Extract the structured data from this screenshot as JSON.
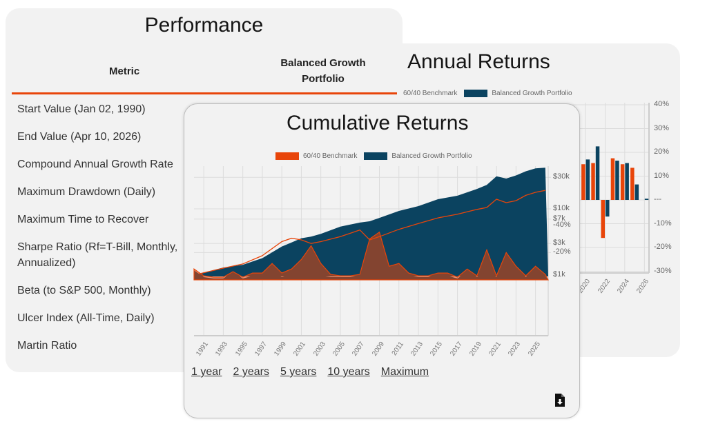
{
  "performance": {
    "title": "Performance",
    "columns": [
      "Metric",
      "Balanced Growth Portfolio"
    ],
    "rows": [
      "Start Value (Jan 02, 1990)",
      "End Value (Apr 10, 2026)",
      "Compound Annual Growth Rate",
      "Maximum Drawdown (Daily)",
      "Maximum Time to Recover",
      "Sharpe Ratio (Rf=T-Bill, Monthly, Annualized)",
      "Beta (to S&P 500, Monthly)",
      "Ulcer Index (All-Time, Daily)",
      "Martin Ratio"
    ],
    "accent": "#e8450a"
  },
  "annual": {
    "title": "Annual Returns",
    "legend": [
      "60/40 Benchmark",
      "Balanced Growth Portfolio"
    ],
    "y_ticks": [
      "40%",
      "30%",
      "20%",
      "10%",
      "---",
      "-10%",
      "-20%",
      "-30%"
    ],
    "x_ticks": [
      "2020",
      "2022",
      "2024",
      "2026"
    ]
  },
  "cumulative": {
    "title": "Cumulative Returns",
    "legend": [
      "60/40 Benchmark",
      "Balanced Growth Portfolio"
    ],
    "y_ticks": [
      "$30k",
      "$10k",
      "$7k",
      "$3k",
      "$1k"
    ],
    "dd_ticks": [
      "-20%",
      "-40%"
    ],
    "x_ticks": [
      "1991",
      "1993",
      "1995",
      "1997",
      "1999",
      "2001",
      "2003",
      "2005",
      "2007",
      "2009",
      "2011",
      "2013",
      "2015",
      "2017",
      "2019",
      "2021",
      "2023",
      "2025"
    ],
    "links": [
      "1 year",
      "2 years",
      "5 years",
      "10 years",
      "Maximum"
    ],
    "download_icon": "file-download-icon"
  },
  "colors": {
    "benchmark": "#e8450a",
    "portfolio": "#0b4360"
  },
  "chart_data": [
    {
      "type": "area",
      "title": "Cumulative Returns",
      "yscale": "log",
      "ylim": [
        1000,
        42000
      ],
      "x": [
        1990,
        1993,
        1995,
        1997,
        1999,
        2000,
        2001,
        2002,
        2003,
        2005,
        2007,
        2008,
        2009,
        2011,
        2013,
        2015,
        2017,
        2019,
        2020,
        2021,
        2022,
        2023,
        2024,
        2025,
        2026
      ],
      "series": [
        {
          "name": "60/40 Benchmark",
          "values": [
            1000,
            1270,
            1470,
            1960,
            3200,
            3600,
            3400,
            3000,
            3200,
            3800,
            4800,
            3400,
            3800,
            4900,
            6000,
            7300,
            8300,
            9800,
            10500,
            14000,
            12400,
            13300,
            16000,
            17800,
            19000
          ]
        },
        {
          "name": "Balanced Growth Portfolio",
          "values": [
            1000,
            1300,
            1430,
            1800,
            2700,
            3100,
            3600,
            3800,
            4200,
            5400,
            6200,
            6500,
            7300,
            9300,
            11000,
            14000,
            15800,
            20000,
            23000,
            31000,
            28700,
            32000,
            37000,
            41000,
            42000
          ]
        }
      ]
    },
    {
      "type": "area",
      "title": "Drawdown",
      "ylim": [
        -40,
        0
      ],
      "x": [
        1990,
        1991,
        1992,
        1993,
        1994,
        1995,
        1996,
        1997,
        1998,
        1999,
        2000,
        2001,
        2002,
        2003,
        2004,
        2005,
        2006,
        2007,
        2008,
        2009,
        2010,
        2011,
        2012,
        2013,
        2014,
        2015,
        2016,
        2017,
        2018,
        2019,
        2020,
        2021,
        2022,
        2023,
        2024,
        2025,
        2026
      ],
      "series": [
        {
          "name": "60/40 Benchmark",
          "values": [
            -8,
            -3,
            -2,
            -2,
            -6,
            -2,
            -5,
            -5,
            -12,
            -5,
            -8,
            -15,
            -25,
            -12,
            -4,
            -3,
            -3,
            -4,
            -30,
            -35,
            -10,
            -12,
            -5,
            -3,
            -3,
            -5,
            -5,
            -2,
            -8,
            -3,
            -22,
            -3,
            -20,
            -10,
            -3,
            -10,
            -4
          ]
        },
        {
          "name": "Balanced Growth Portfolio",
          "values": [
            -7,
            -2,
            -1,
            -1,
            -6,
            -1,
            -3,
            -4,
            -6,
            -2,
            -4,
            -3,
            -8,
            -3,
            -2,
            -2,
            -2,
            -3,
            -10,
            -8,
            -8,
            -7,
            -3,
            -2,
            -2,
            -4,
            -3,
            -1,
            -6,
            -2,
            -6,
            -2,
            -12,
            -8,
            -2,
            -6,
            -3
          ]
        }
      ]
    },
    {
      "type": "bar",
      "title": "Annual Returns",
      "ylim": [
        -30,
        40
      ],
      "categories": [
        "2020",
        "2021",
        "2022",
        "2023",
        "2024",
        "2025",
        "2026"
      ],
      "series": [
        {
          "name": "60/40 Benchmark",
          "values": [
            15,
            15.5,
            -16,
            17.5,
            15,
            13.5,
            0
          ]
        },
        {
          "name": "Balanced Growth Portfolio",
          "values": [
            17,
            22.5,
            -7,
            16.5,
            15.5,
            6.5,
            0.5
          ]
        }
      ]
    }
  ]
}
